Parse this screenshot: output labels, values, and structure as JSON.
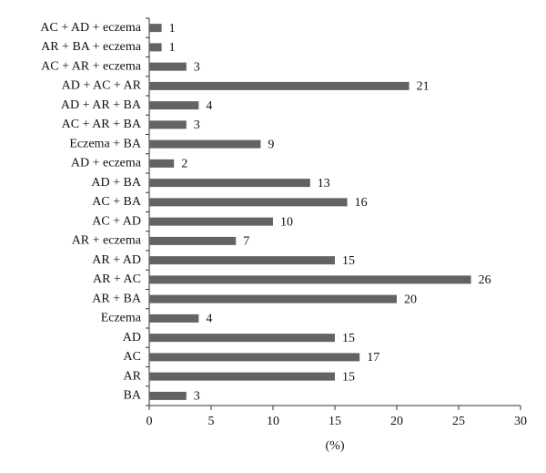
{
  "chart_data": {
    "type": "hbar",
    "x_label": "(%)",
    "categories": [
      "AC + AD + eczema",
      "AR + BA + eczema",
      "AC + AR + eczema",
      "AD + AC + AR",
      "AD + AR + BA",
      "AC + AR + BA",
      "Eczema + BA",
      "AD + eczema",
      "AD + BA",
      "AC + BA",
      "AC + AD",
      "AR + eczema",
      "AR + AD",
      "AR + AC",
      "AR + BA",
      "Eczema",
      "AD",
      "AC",
      "AR",
      "BA"
    ],
    "values": [
      1,
      1,
      3,
      21,
      4,
      3,
      9,
      2,
      13,
      16,
      10,
      7,
      15,
      26,
      20,
      4,
      15,
      17,
      15,
      3
    ],
    "color": "#636363",
    "xlim": [
      0,
      30
    ],
    "xticks": [
      0,
      5,
      10,
      15,
      20,
      25,
      30
    ]
  }
}
